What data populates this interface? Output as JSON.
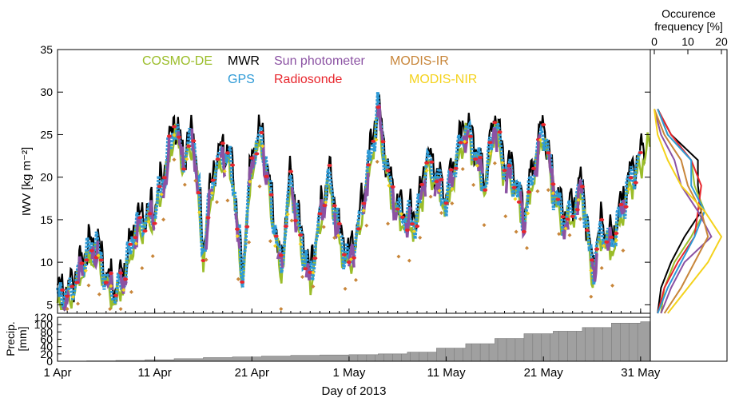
{
  "colors": {
    "COSMO-DE": "#9bbd2a",
    "MWR": "#000000",
    "Sun photometer": "#8b52a3",
    "MODIS-IR": "#c8863a",
    "GPS": "#2e9ad6",
    "Radiosonde": "#e8262d",
    "MODIS-NIR": "#f4d21c",
    "precip_fill": "#a0a0a0",
    "precip_dark": "#7a7a7a"
  },
  "chart_data": [
    {
      "type": "line",
      "ylabel": "IWV [kg m⁻²]",
      "ylim": [
        4,
        35
      ],
      "yticks": [
        "5",
        "10",
        "15",
        "20",
        "25",
        "30",
        "35"
      ],
      "xlim_days": [
        0,
        61
      ],
      "legend": [
        {
          "name": "COSMO-DE",
          "key": "COSMO-DE"
        },
        {
          "name": "MWR",
          "key": "MWR"
        },
        {
          "name": "Sun photometer",
          "key": "Sun photometer"
        },
        {
          "name": "MODIS-IR",
          "key": "MODIS-IR"
        },
        {
          "name": "GPS",
          "key": "GPS"
        },
        {
          "name": "Radiosonde",
          "key": "Radiosonde"
        },
        {
          "name": "MODIS-NIR",
          "key": "MODIS-NIR"
        }
      ],
      "legend_placement": "top",
      "iwv_series": {
        "day": [
          0,
          1,
          2,
          3,
          4,
          5,
          6,
          7,
          8,
          9,
          10,
          11,
          12,
          13,
          14,
          15,
          16,
          17,
          18,
          19,
          20,
          21,
          22,
          23,
          24,
          25,
          26,
          27,
          28,
          29,
          30,
          31,
          32,
          33,
          34,
          35,
          36,
          37,
          38,
          39,
          40,
          41,
          42,
          43,
          44,
          45,
          46,
          47,
          48,
          49,
          50,
          51,
          52,
          53,
          54,
          55,
          56,
          57,
          58,
          59,
          60,
          61
        ],
        "value": [
          6,
          6,
          8,
          11,
          12,
          8,
          6,
          9,
          14,
          15,
          16,
          20,
          26,
          22,
          25,
          11,
          20,
          23,
          21,
          8,
          22,
          25,
          17,
          9,
          20,
          13,
          8,
          15,
          20,
          13,
          10,
          14,
          21,
          28,
          20,
          16,
          15,
          15,
          22,
          20,
          17,
          22,
          26,
          23,
          19,
          27,
          21,
          20,
          15,
          21,
          26,
          19,
          15,
          16,
          19,
          9,
          14,
          12,
          16,
          20,
          22,
          25
        ]
      }
    },
    {
      "type": "area",
      "ylabel": "Precip. [mm]",
      "ylim": [
        0,
        120
      ],
      "yticks": [
        "0",
        "20",
        "40",
        "60",
        "80",
        "100",
        "120"
      ],
      "xlabel": "Day of 2013",
      "xticks": [
        {
          "day": 0,
          "label": "1 Apr"
        },
        {
          "day": 10,
          "label": "11 Apr"
        },
        {
          "day": 20,
          "label": "21 Apr"
        },
        {
          "day": 30,
          "label": "1 May"
        },
        {
          "day": 40,
          "label": "11 May"
        },
        {
          "day": 50,
          "label": "21 May"
        },
        {
          "day": 60,
          "label": "31 May"
        }
      ],
      "cumulative": {
        "day": [
          0,
          3,
          6,
          9,
          12,
          15,
          18,
          21,
          24,
          27,
          30,
          33,
          36,
          39,
          42,
          45,
          48,
          51,
          54,
          57,
          60,
          61
        ],
        "value": [
          0,
          1,
          2,
          4,
          7,
          10,
          12,
          14,
          16,
          17,
          18,
          20,
          25,
          36,
          48,
          62,
          75,
          82,
          92,
          104,
          108,
          110
        ]
      }
    },
    {
      "type": "line",
      "title": "Occurence frequency [%]",
      "xlim": [
        0,
        20
      ],
      "xticks": [
        "0",
        "10",
        "20"
      ],
      "distributions": [
        {
          "key": "MWR",
          "iwv": [
            4,
            7,
            10,
            13,
            16,
            19,
            22,
            25,
            28
          ],
          "freq": [
            1,
            2,
            5,
            9,
            14,
            13,
            13,
            5,
            1
          ]
        },
        {
          "key": "COSMO-DE",
          "iwv": [
            4,
            7,
            10,
            13,
            16,
            19,
            22,
            25,
            28
          ],
          "freq": [
            2,
            3,
            6,
            11,
            15,
            12,
            11,
            4,
            1
          ]
        },
        {
          "key": "Radiosonde",
          "iwv": [
            4,
            7,
            10,
            13,
            16,
            19,
            22,
            25,
            28
          ],
          "freq": [
            1,
            3,
            7,
            12,
            13,
            14,
            11,
            5,
            1
          ]
        },
        {
          "key": "GPS",
          "iwv": [
            4,
            7,
            10,
            13,
            16,
            19,
            22,
            25,
            28
          ],
          "freq": [
            1,
            4,
            8,
            12,
            15,
            11,
            11,
            4,
            1
          ]
        },
        {
          "key": "Sun photometer",
          "iwv": [
            4,
            7,
            10,
            13,
            16,
            19,
            22,
            25,
            28
          ],
          "freq": [
            2,
            5,
            9,
            17,
            13,
            8,
            6,
            2,
            0
          ]
        },
        {
          "key": "MODIS-IR",
          "iwv": [
            4,
            7,
            10,
            13,
            16,
            19,
            22,
            25,
            28
          ],
          "freq": [
            3,
            8,
            12,
            16,
            14,
            10,
            8,
            3,
            0
          ]
        },
        {
          "key": "MODIS-NIR",
          "iwv": [
            4,
            7,
            10,
            13,
            16,
            19,
            22,
            25,
            28
          ],
          "freq": [
            4,
            10,
            16,
            20,
            15,
            8,
            4,
            1,
            0
          ]
        }
      ]
    }
  ],
  "texts": {
    "freq_title_1": "Occurence",
    "freq_title_2": "frequency [%]",
    "iwv_ylabel": "IWV [kg m⁻²]",
    "precip_ylabel_1": "Precip.",
    "precip_ylabel_2": "[mm]",
    "xlabel": "Day of 2013"
  }
}
